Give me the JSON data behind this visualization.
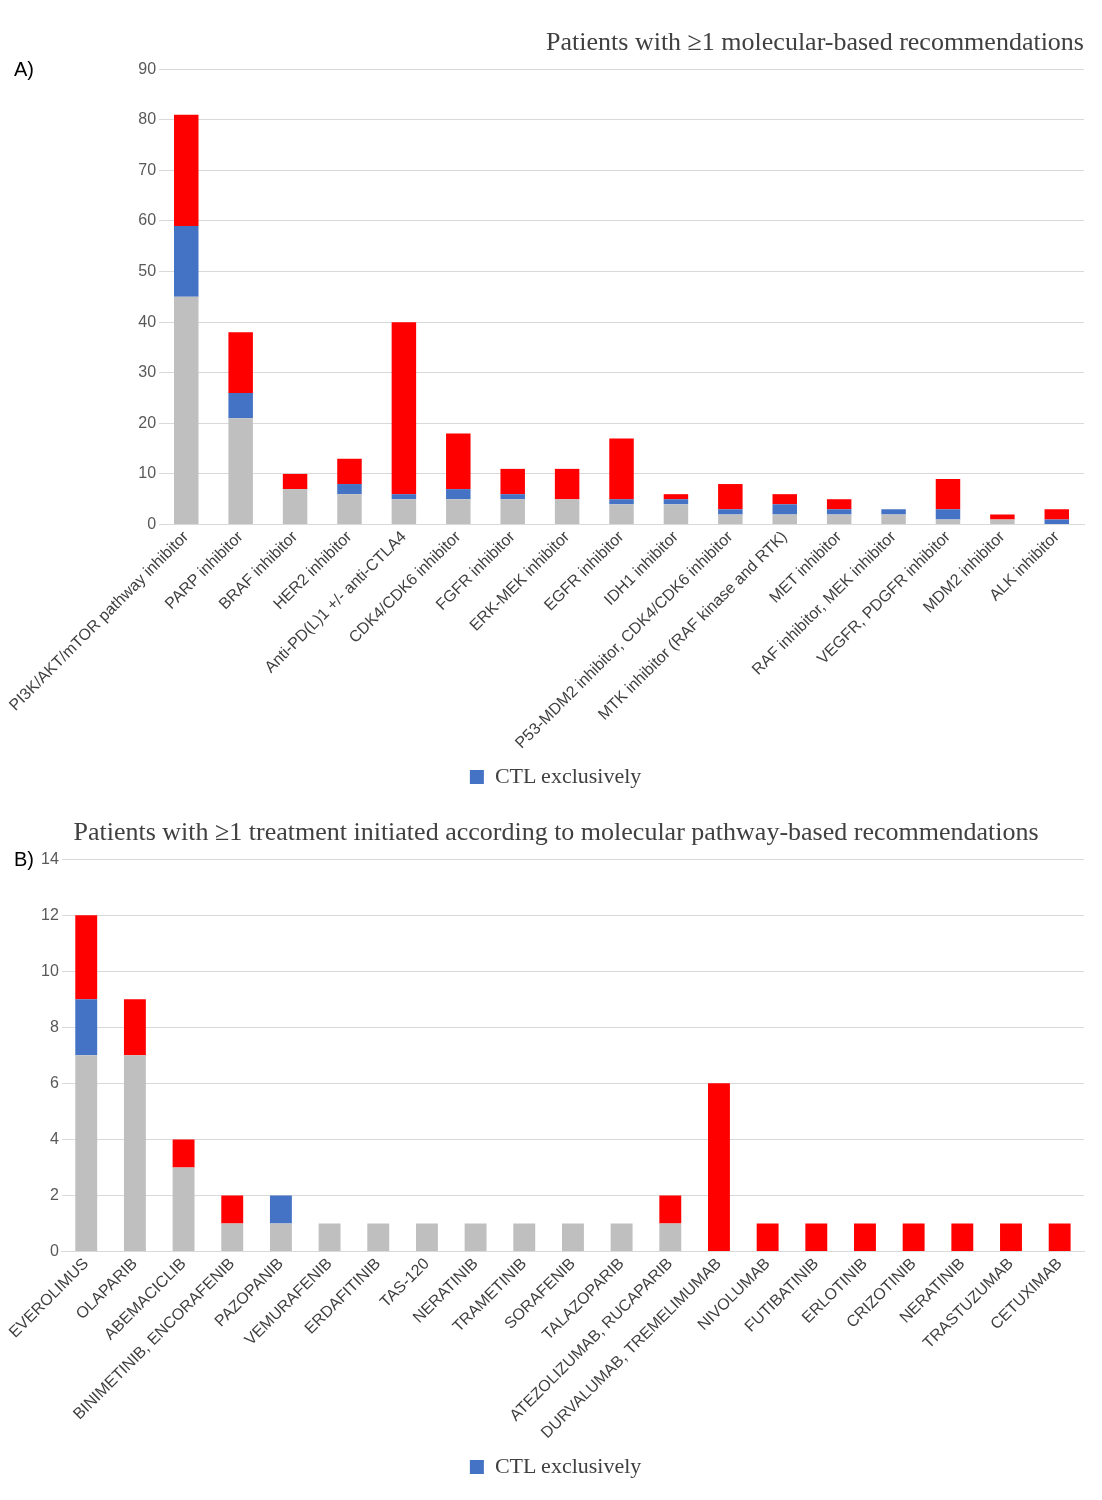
{
  "chart_data": [
    {
      "type": "bar",
      "title": "Patients with ≥1 molecular-based recommendations",
      "annotations": [
        "A)"
      ],
      "stacked": true,
      "grid": "y",
      "legend": "bottom",
      "categories": [
        "PI3K/AKT/mTOR pathway inhibitor",
        "PARP inhibitor",
        "BRAF inhibitor",
        "HER2 inhibitor",
        "Anti-PD(L)1 +/- anti-CTLA4",
        "CDK4/CDK6 inhibitor",
        "FGFR inhibitor",
        "ERK-MEK inhibitor",
        "EGFR inhibitor",
        "IDH1 inhibitor",
        "P53-MDM2 inhibitor, CDK4/CDK6 inhibitor",
        "MTK inhibitor (RAF kinase and RTK)",
        "MET inhibitor",
        "RAF inhibitor, MEK inhibitor",
        "VEGFR, PDGFR inhibitor",
        "MDM2 inhibitor",
        "ALK inhibitor"
      ],
      "ylim": [
        0,
        90
      ],
      "yticks": [
        0,
        10,
        20,
        30,
        40,
        50,
        60,
        70,
        80,
        90
      ],
      "series": [
        {
          "color": "#bfbfbf",
          "values": [
            45,
            21,
            7,
            6,
            5,
            5,
            5,
            5,
            4,
            4,
            2,
            2,
            2,
            2,
            1,
            1,
            0
          ]
        },
        {
          "name": "CTL exclusively",
          "color": "#4472c4",
          "values": [
            14,
            5,
            0,
            2,
            1,
            2,
            1,
            0,
            1,
            1,
            1,
            2,
            1,
            1,
            2,
            0,
            1
          ]
        },
        {
          "color": "#ff0000",
          "values": [
            22,
            12,
            3,
            5,
            34,
            11,
            5,
            6,
            12,
            1,
            5,
            2,
            2,
            0,
            6,
            1,
            2
          ]
        }
      ]
    },
    {
      "type": "bar",
      "title": "Patients with ≥1 treatment initiated according to molecular pathway-based recommendations",
      "annotations": [
        "B)"
      ],
      "stacked": true,
      "grid": "y",
      "legend": "bottom",
      "categories": [
        "EVEROLIMUS",
        "OLAPARIB",
        "ABEMACICLIB",
        "BINIMETINIB, ENCORAFENIB",
        "PAZOPANIB",
        "VEMURAFENIB",
        "ERDAFITINIB",
        "TAS-120",
        "NERATINIB",
        "TRAMETINIB",
        "SORAFENIB",
        "TALAZOPARIB",
        "ATEZOLIZUMAB, RUCAPARIB",
        "DURVALUMAB, TREMELIMUMAB",
        "NIVOLUMAB",
        "FUTIBATINIB",
        "ERLOTINIB",
        "CRIZOTINIB",
        "NERATINIB",
        "TRASTUZUMAB",
        "CETUXIMAB"
      ],
      "ylim": [
        0,
        14
      ],
      "yticks": [
        0,
        2,
        4,
        6,
        8,
        10,
        12,
        14
      ],
      "series": [
        {
          "color": "#bfbfbf",
          "values": [
            7,
            7,
            3,
            1,
            1,
            1,
            1,
            1,
            1,
            1,
            1,
            1,
            1,
            0,
            0,
            0,
            0,
            0,
            0,
            0,
            0
          ]
        },
        {
          "name": "CTL exclusively",
          "color": "#4472c4",
          "values": [
            2,
            0,
            0,
            0,
            1,
            0,
            0,
            0,
            0,
            0,
            0,
            0,
            0,
            0,
            0,
            0,
            0,
            0,
            0,
            0,
            0
          ]
        },
        {
          "color": "#ff0000",
          "values": [
            3,
            2,
            1,
            1,
            0,
            0,
            0,
            0,
            0,
            0,
            0,
            0,
            1,
            6,
            1,
            1,
            1,
            1,
            1,
            1,
            1
          ]
        }
      ]
    }
  ]
}
